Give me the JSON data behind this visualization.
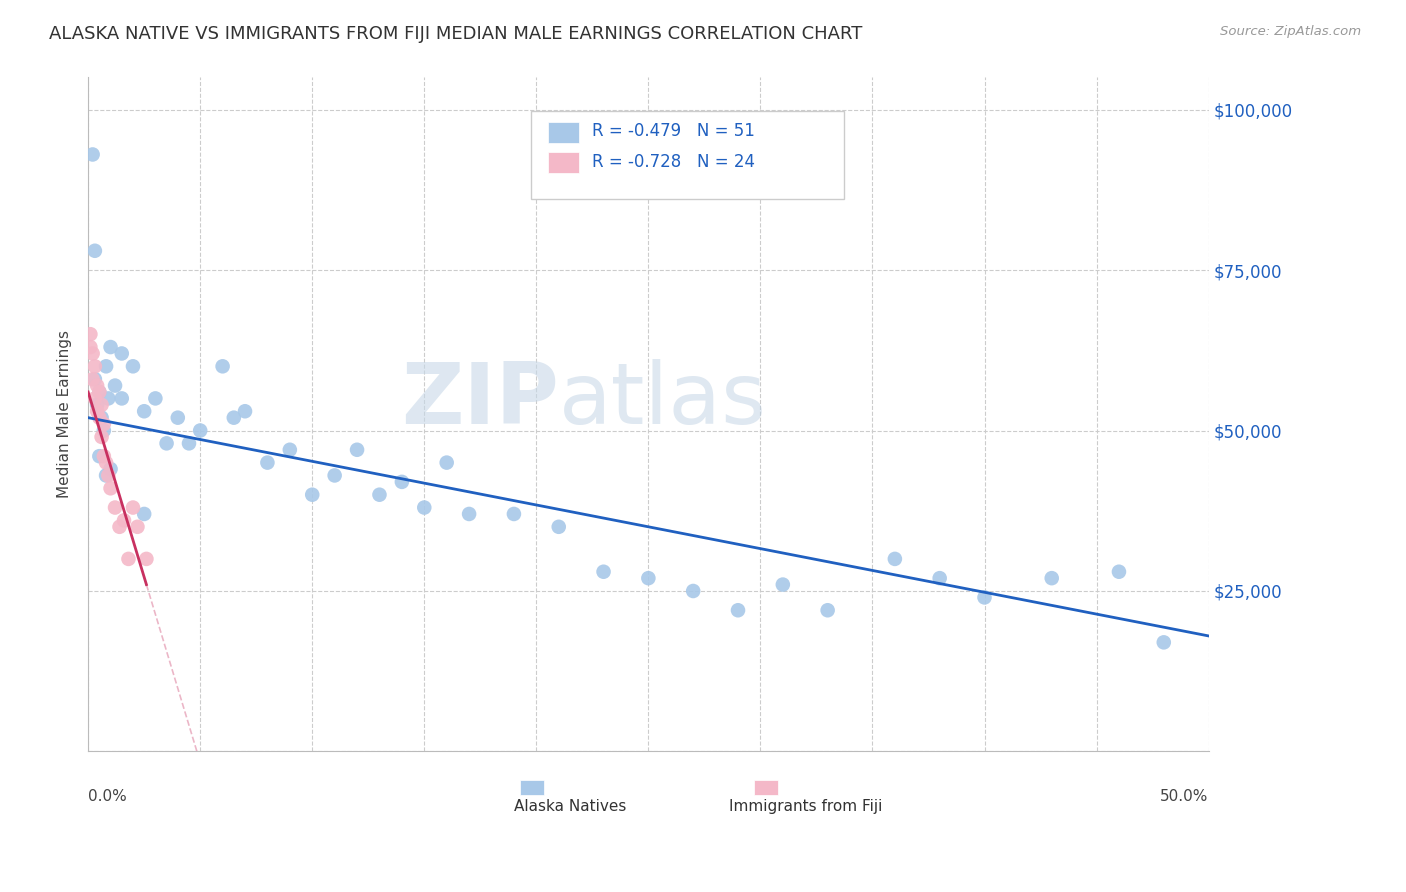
{
  "title": "ALASKA NATIVE VS IMMIGRANTS FROM FIJI MEDIAN MALE EARNINGS CORRELATION CHART",
  "source": "Source: ZipAtlas.com",
  "ylabel": "Median Male Earnings",
  "y_ticks": [
    0,
    25000,
    50000,
    75000,
    100000
  ],
  "y_tick_labels": [
    "",
    "$25,000",
    "$50,000",
    "$75,000",
    "$100,000"
  ],
  "legend_blue_label": "Alaska Natives",
  "legend_pink_label": "Immigrants from Fiji",
  "legend_r_blue": "R = -0.479",
  "legend_n_blue": "N = 51",
  "legend_r_pink": "R = -0.728",
  "legend_n_pink": "N = 24",
  "blue_color": "#a8c8e8",
  "pink_color": "#f4b8c8",
  "blue_line_color": "#2060c0",
  "pink_line_color": "#c83060",
  "watermark_zip": "ZIP",
  "watermark_atlas": "atlas",
  "alaska_x": [
    0.002,
    0.003,
    0.004,
    0.005,
    0.006,
    0.007,
    0.008,
    0.009,
    0.01,
    0.012,
    0.015,
    0.02,
    0.025,
    0.03,
    0.035,
    0.04,
    0.045,
    0.05,
    0.06,
    0.065,
    0.07,
    0.08,
    0.09,
    0.1,
    0.11,
    0.12,
    0.13,
    0.14,
    0.15,
    0.16,
    0.17,
    0.19,
    0.21,
    0.23,
    0.25,
    0.27,
    0.29,
    0.31,
    0.33,
    0.36,
    0.38,
    0.4,
    0.43,
    0.46,
    0.48,
    0.003,
    0.005,
    0.008,
    0.01,
    0.015,
    0.025
  ],
  "alaska_y": [
    93000,
    58000,
    54000,
    56000,
    52000,
    50000,
    60000,
    55000,
    63000,
    57000,
    62000,
    60000,
    53000,
    55000,
    48000,
    52000,
    48000,
    50000,
    60000,
    52000,
    53000,
    45000,
    47000,
    40000,
    43000,
    47000,
    40000,
    42000,
    38000,
    45000,
    37000,
    37000,
    35000,
    28000,
    27000,
    25000,
    22000,
    26000,
    22000,
    30000,
    27000,
    24000,
    27000,
    28000,
    17000,
    78000,
    46000,
    43000,
    44000,
    55000,
    37000
  ],
  "fiji_x": [
    0.001,
    0.001,
    0.002,
    0.002,
    0.003,
    0.003,
    0.004,
    0.004,
    0.005,
    0.005,
    0.006,
    0.006,
    0.007,
    0.007,
    0.008,
    0.009,
    0.01,
    0.012,
    0.014,
    0.016,
    0.018,
    0.02,
    0.022,
    0.026
  ],
  "fiji_y": [
    65000,
    63000,
    62000,
    58000,
    60000,
    55000,
    57000,
    53000,
    56000,
    52000,
    54000,
    49000,
    51000,
    46000,
    45000,
    43000,
    41000,
    38000,
    35000,
    36000,
    30000,
    38000,
    35000,
    30000
  ],
  "xlim": [
    0.0,
    0.5
  ],
  "ylim": [
    0,
    105000
  ],
  "blue_line_x0": 0.0,
  "blue_line_y0": 52000,
  "blue_line_x1": 0.5,
  "blue_line_y1": 18000,
  "pink_line_x0": 0.0,
  "pink_line_y0": 56000,
  "pink_line_x1": 0.026,
  "pink_line_y1": 26000
}
